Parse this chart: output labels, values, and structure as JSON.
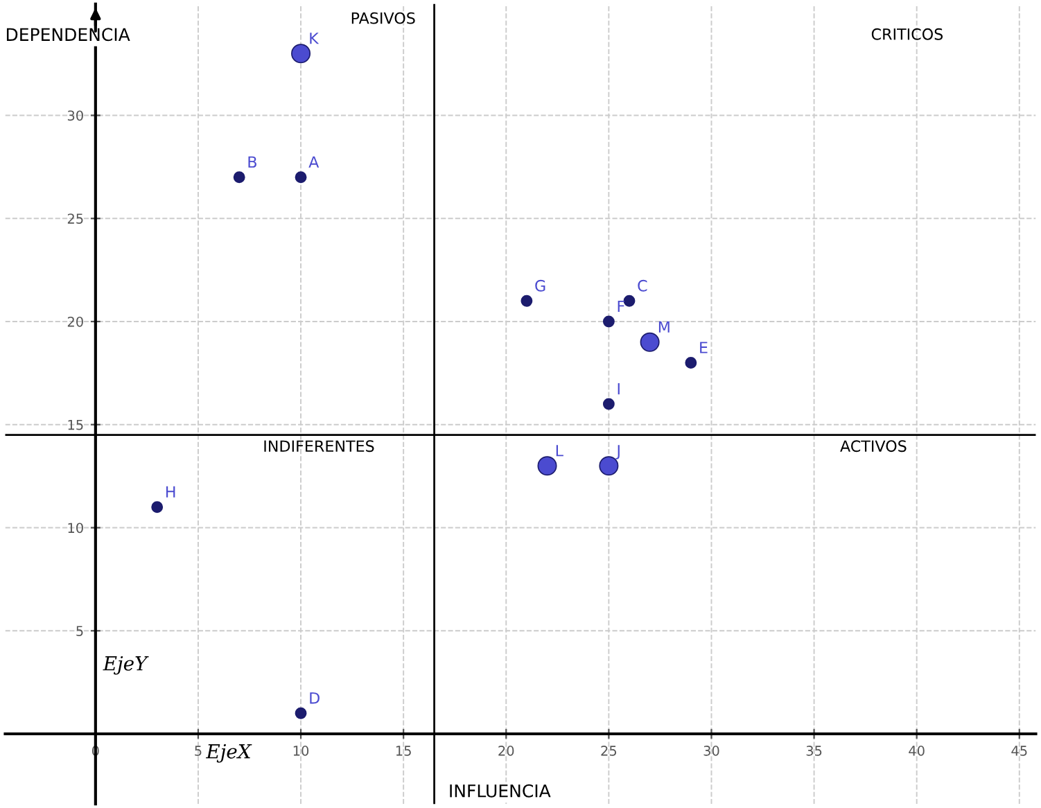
{
  "chart_data": {
    "type": "scatter",
    "xlabel": "INFLUENCIA",
    "ylabel": "DEPENDENCIA",
    "series": [
      {
        "color": "#1c1c6e",
        "x": [
          10,
          7,
          26,
          10,
          29,
          25,
          21,
          3,
          25
        ],
        "values": [
          27,
          27,
          21,
          1,
          18,
          20,
          21,
          11,
          16
        ]
      },
      {
        "color": "#4b4bd0",
        "x": [
          10,
          27,
          22,
          25
        ],
        "values": [
          33,
          19,
          13,
          13
        ]
      }
    ],
    "annotations": [
      "PASIVOS",
      "CRITICOS",
      "INDIFERENTES",
      "ACTIVOS",
      "EjeX",
      "EjeY",
      {
        "text": "A",
        "x": 10,
        "y": 27
      },
      {
        "text": "B",
        "x": 7,
        "y": 27
      },
      {
        "text": "C",
        "x": 26,
        "y": 21
      },
      {
        "text": "D",
        "x": 10,
        "y": 1
      },
      {
        "text": "E",
        "x": 29,
        "y": 18
      },
      {
        "text": "F",
        "x": 25,
        "y": 20
      },
      {
        "text": "G",
        "x": 21,
        "y": 21
      },
      {
        "text": "H",
        "x": 3,
        "y": 11
      },
      {
        "text": "I",
        "x": 25,
        "y": 16
      },
      {
        "text": "J",
        "x": 25,
        "y": 13
      },
      {
        "text": "K",
        "x": 10,
        "y": 33
      },
      {
        "text": "L",
        "x": 22,
        "y": 13
      },
      {
        "text": "M",
        "x": 27,
        "y": 19
      }
    ],
    "ref_lines": [
      {
        "axis": "x",
        "value": 16.5,
        "color": "#000000"
      },
      {
        "axis": "y",
        "value": 14.5,
        "color": "#000000"
      }
    ],
    "xlim": [
      -4.4,
      45.8
    ],
    "ylim": [
      -3.4,
      35.4
    ],
    "xticks": [
      0,
      5,
      10,
      15,
      20,
      25,
      30,
      35,
      40,
      45
    ],
    "yticks": [
      5,
      10,
      15,
      20,
      25,
      30
    ],
    "grid": true,
    "marker": "circle",
    "legend": false
  }
}
